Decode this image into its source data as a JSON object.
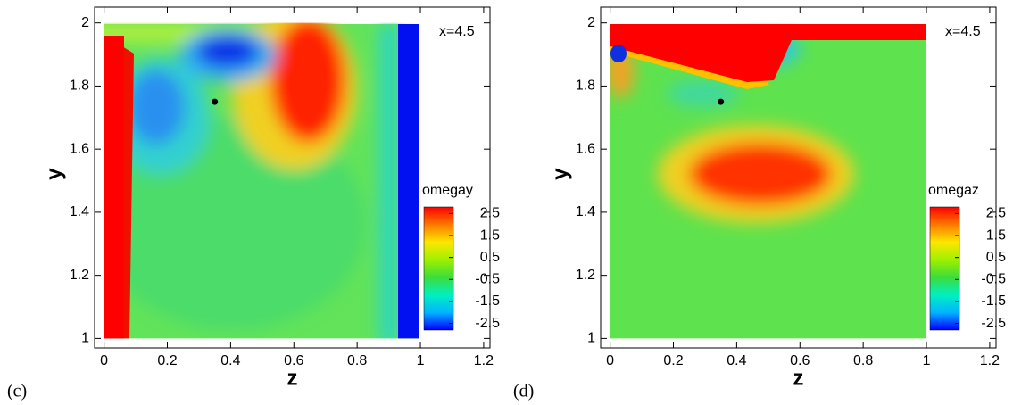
{
  "chart_data": [
    {
      "type": "contour",
      "panel_label": "(c)",
      "title": "x=4.5",
      "xlabel": "z",
      "ylabel": "y",
      "xlim": [
        -0.03,
        1.22
      ],
      "ylim": [
        0.97,
        2.05
      ],
      "xticks": [
        0,
        0.2,
        0.4,
        0.6,
        0.8,
        1,
        1.2
      ],
      "yticks": [
        1,
        1.2,
        1.4,
        1.6,
        1.8,
        2
      ],
      "field_extent": {
        "x": [
          0,
          1
        ],
        "y": [
          1,
          2
        ]
      },
      "point": {
        "x": 0.35,
        "y": 1.75
      },
      "colorbar_label": "omegay",
      "clim": [
        -2.8,
        2.8
      ],
      "cticks": [
        2.5,
        1.5,
        0.5,
        -0.5,
        -1.5,
        -2.5
      ],
      "colormap": [
        "#0000ff",
        "#00b4ff",
        "#00f0c0",
        "#3cdc3c",
        "#a0f000",
        "#ffe600",
        "#ff7800",
        "#ff0000"
      ]
    },
    {
      "type": "contour",
      "panel_label": "(d)",
      "title": "x=4.5",
      "xlabel": "z",
      "ylabel": "y",
      "xlim": [
        -0.03,
        1.22
      ],
      "ylim": [
        0.97,
        2.05
      ],
      "xticks": [
        0,
        0.2,
        0.4,
        0.6,
        0.8,
        1,
        1.2
      ],
      "yticks": [
        1,
        1.2,
        1.4,
        1.6,
        1.8,
        2
      ],
      "field_extent": {
        "x": [
          0,
          1
        ],
        "y": [
          1,
          2
        ]
      },
      "point": {
        "x": 0.35,
        "y": 1.75
      },
      "colorbar_label": "omegaz",
      "clim": [
        -2.8,
        2.8
      ],
      "cticks": [
        2.5,
        1.5,
        0.5,
        -0.5,
        -1.5,
        -2.5
      ],
      "colormap": [
        "#0000ff",
        "#00b4ff",
        "#00f0c0",
        "#3cdc3c",
        "#a0f000",
        "#ffe600",
        "#ff7800",
        "#ff0000"
      ]
    }
  ]
}
